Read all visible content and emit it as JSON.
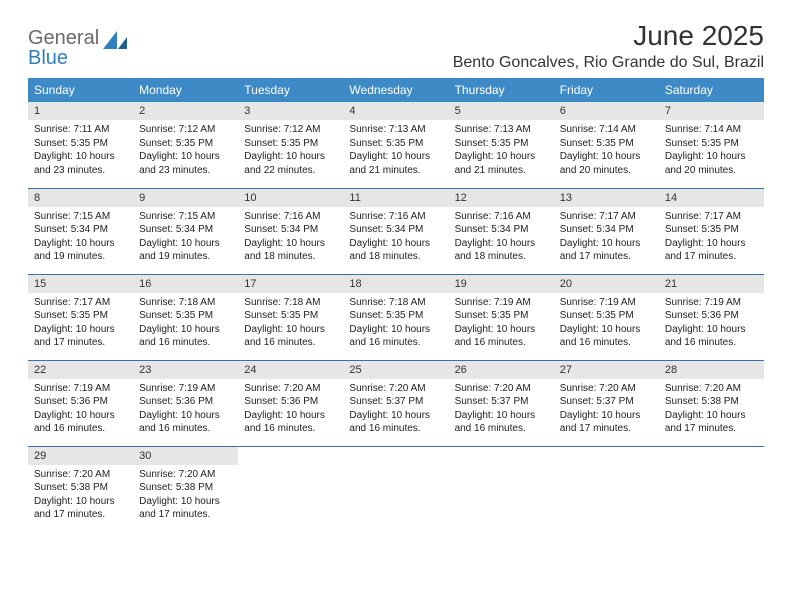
{
  "logo": {
    "word1": "General",
    "word2": "Blue"
  },
  "title": "June 2025",
  "location": "Bento Goncalves, Rio Grande do Sul, Brazil",
  "colors": {
    "header_bg": "#3d8ac7",
    "header_text": "#ffffff",
    "daynum_bg": "#e6e6e6",
    "row_border": "#3d6fa5",
    "logo_gray": "#6b6b6b",
    "logo_blue": "#2f7fbf",
    "text": "#222222"
  },
  "weekdays": [
    "Sunday",
    "Monday",
    "Tuesday",
    "Wednesday",
    "Thursday",
    "Friday",
    "Saturday"
  ],
  "labels": {
    "sunrise": "Sunrise:",
    "sunset": "Sunset:",
    "daylight": "Daylight:"
  },
  "weeks": [
    [
      {
        "n": "1",
        "sunrise": "7:11 AM",
        "sunset": "5:35 PM",
        "daylight": "10 hours and 23 minutes."
      },
      {
        "n": "2",
        "sunrise": "7:12 AM",
        "sunset": "5:35 PM",
        "daylight": "10 hours and 23 minutes."
      },
      {
        "n": "3",
        "sunrise": "7:12 AM",
        "sunset": "5:35 PM",
        "daylight": "10 hours and 22 minutes."
      },
      {
        "n": "4",
        "sunrise": "7:13 AM",
        "sunset": "5:35 PM",
        "daylight": "10 hours and 21 minutes."
      },
      {
        "n": "5",
        "sunrise": "7:13 AM",
        "sunset": "5:35 PM",
        "daylight": "10 hours and 21 minutes."
      },
      {
        "n": "6",
        "sunrise": "7:14 AM",
        "sunset": "5:35 PM",
        "daylight": "10 hours and 20 minutes."
      },
      {
        "n": "7",
        "sunrise": "7:14 AM",
        "sunset": "5:35 PM",
        "daylight": "10 hours and 20 minutes."
      }
    ],
    [
      {
        "n": "8",
        "sunrise": "7:15 AM",
        "sunset": "5:34 PM",
        "daylight": "10 hours and 19 minutes."
      },
      {
        "n": "9",
        "sunrise": "7:15 AM",
        "sunset": "5:34 PM",
        "daylight": "10 hours and 19 minutes."
      },
      {
        "n": "10",
        "sunrise": "7:16 AM",
        "sunset": "5:34 PM",
        "daylight": "10 hours and 18 minutes."
      },
      {
        "n": "11",
        "sunrise": "7:16 AM",
        "sunset": "5:34 PM",
        "daylight": "10 hours and 18 minutes."
      },
      {
        "n": "12",
        "sunrise": "7:16 AM",
        "sunset": "5:34 PM",
        "daylight": "10 hours and 18 minutes."
      },
      {
        "n": "13",
        "sunrise": "7:17 AM",
        "sunset": "5:34 PM",
        "daylight": "10 hours and 17 minutes."
      },
      {
        "n": "14",
        "sunrise": "7:17 AM",
        "sunset": "5:35 PM",
        "daylight": "10 hours and 17 minutes."
      }
    ],
    [
      {
        "n": "15",
        "sunrise": "7:17 AM",
        "sunset": "5:35 PM",
        "daylight": "10 hours and 17 minutes."
      },
      {
        "n": "16",
        "sunrise": "7:18 AM",
        "sunset": "5:35 PM",
        "daylight": "10 hours and 16 minutes."
      },
      {
        "n": "17",
        "sunrise": "7:18 AM",
        "sunset": "5:35 PM",
        "daylight": "10 hours and 16 minutes."
      },
      {
        "n": "18",
        "sunrise": "7:18 AM",
        "sunset": "5:35 PM",
        "daylight": "10 hours and 16 minutes."
      },
      {
        "n": "19",
        "sunrise": "7:19 AM",
        "sunset": "5:35 PM",
        "daylight": "10 hours and 16 minutes."
      },
      {
        "n": "20",
        "sunrise": "7:19 AM",
        "sunset": "5:35 PM",
        "daylight": "10 hours and 16 minutes."
      },
      {
        "n": "21",
        "sunrise": "7:19 AM",
        "sunset": "5:36 PM",
        "daylight": "10 hours and 16 minutes."
      }
    ],
    [
      {
        "n": "22",
        "sunrise": "7:19 AM",
        "sunset": "5:36 PM",
        "daylight": "10 hours and 16 minutes."
      },
      {
        "n": "23",
        "sunrise": "7:19 AM",
        "sunset": "5:36 PM",
        "daylight": "10 hours and 16 minutes."
      },
      {
        "n": "24",
        "sunrise": "7:20 AM",
        "sunset": "5:36 PM",
        "daylight": "10 hours and 16 minutes."
      },
      {
        "n": "25",
        "sunrise": "7:20 AM",
        "sunset": "5:37 PM",
        "daylight": "10 hours and 16 minutes."
      },
      {
        "n": "26",
        "sunrise": "7:20 AM",
        "sunset": "5:37 PM",
        "daylight": "10 hours and 16 minutes."
      },
      {
        "n": "27",
        "sunrise": "7:20 AM",
        "sunset": "5:37 PM",
        "daylight": "10 hours and 17 minutes."
      },
      {
        "n": "28",
        "sunrise": "7:20 AM",
        "sunset": "5:38 PM",
        "daylight": "10 hours and 17 minutes."
      }
    ],
    [
      {
        "n": "29",
        "sunrise": "7:20 AM",
        "sunset": "5:38 PM",
        "daylight": "10 hours and 17 minutes."
      },
      {
        "n": "30",
        "sunrise": "7:20 AM",
        "sunset": "5:38 PM",
        "daylight": "10 hours and 17 minutes."
      },
      null,
      null,
      null,
      null,
      null
    ]
  ]
}
